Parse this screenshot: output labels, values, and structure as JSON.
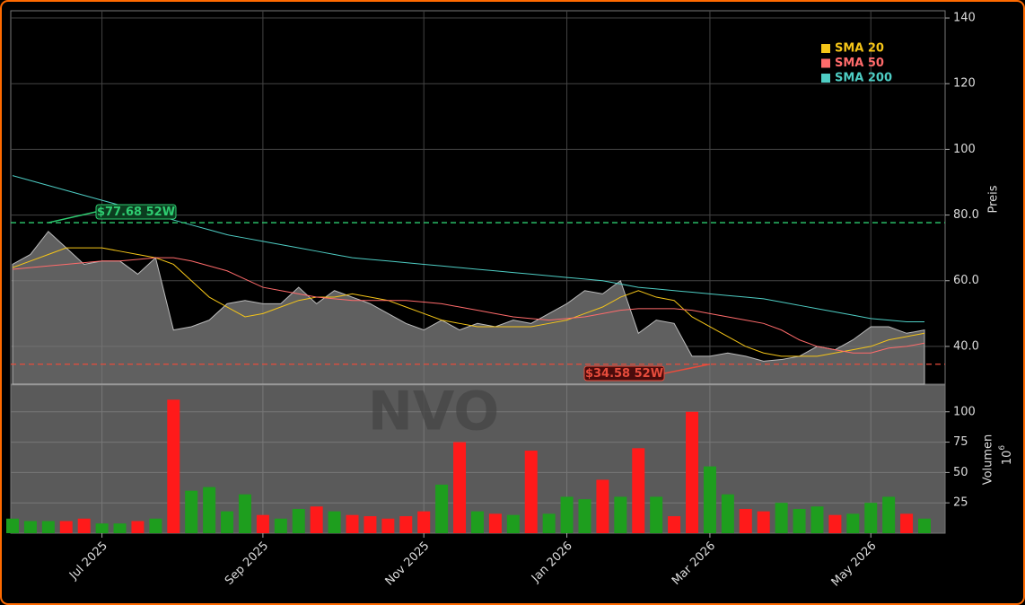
{
  "chart_data": [
    {
      "type": "area",
      "watermark": "NVO",
      "y_label": "Preis",
      "values": [
        65,
        68,
        75,
        70,
        65,
        66,
        66,
        62,
        67,
        45,
        46,
        48,
        53,
        54,
        53,
        53,
        58,
        53,
        57,
        55,
        53,
        50,
        47,
        45,
        48,
        45,
        47,
        46,
        48,
        47,
        50,
        53,
        57,
        56,
        60,
        44,
        48,
        47,
        37,
        37,
        38,
        37,
        35.5,
        36,
        37,
        40,
        39,
        42,
        46,
        46,
        44,
        45
      ],
      "color": "#808080",
      "series": [
        {
          "name": "SMA 20",
          "color": "#f5c518",
          "values": [
            64,
            66,
            68,
            70,
            70,
            70,
            69,
            68,
            67,
            65,
            60,
            55,
            52,
            49,
            50,
            52,
            54,
            55,
            55,
            56,
            55,
            54,
            52,
            50,
            48,
            47,
            46,
            46,
            46,
            46,
            47,
            48,
            50,
            52,
            55,
            57,
            55,
            54,
            49,
            46,
            43,
            40,
            38,
            37,
            37,
            37,
            38,
            39,
            40,
            42,
            43,
            44
          ]
        },
        {
          "name": "SMA 50",
          "color": "#ff6b6b",
          "values": [
            63.5,
            64,
            64.5,
            65,
            65.5,
            66,
            66,
            66.5,
            67,
            67,
            66,
            64.5,
            63,
            60.5,
            58,
            57,
            56,
            55,
            54.5,
            54,
            54,
            54,
            54,
            53.5,
            53,
            52,
            51,
            50,
            49,
            48.5,
            48,
            48.5,
            49,
            50,
            51,
            51.5,
            51.5,
            51.5,
            51,
            50,
            49,
            48,
            47,
            45,
            42,
            40,
            39,
            38,
            38,
            39.5,
            40,
            41
          ]
        },
        {
          "name": "SMA 200",
          "color": "#4ecdc4",
          "values": [
            92,
            90.5,
            89,
            87.5,
            86,
            84.5,
            83,
            81.5,
            80,
            78.5,
            77,
            75.5,
            74,
            73,
            72,
            71,
            70,
            69,
            68,
            67,
            66.5,
            66,
            65.5,
            65,
            64.5,
            64,
            63.5,
            63,
            62.5,
            62,
            61.5,
            61,
            60.5,
            60,
            59,
            58,
            57.5,
            57,
            56.5,
            56,
            55.5,
            55,
            54.5,
            53.5,
            52.5,
            51.5,
            50.5,
            49.5,
            48.5,
            48,
            47.5,
            47.5
          ]
        }
      ],
      "ylim": [
        28.5,
        142.2
      ],
      "yticks": [
        {
          "value": 40,
          "label": "40.0"
        },
        {
          "value": 60,
          "label": "60.0"
        },
        {
          "value": 80,
          "label": "80.0"
        },
        100,
        120,
        140
      ],
      "grid": true,
      "legend": "upper right",
      "annotations": [
        {
          "label": "$77.68 52W",
          "value": 77.68,
          "color": "#2ecc71",
          "point": 2
        },
        {
          "label": "$34.58 52W",
          "value": 34.58,
          "color": "#e74c3c",
          "point": 39
        }
      ]
    },
    {
      "type": "bar",
      "y_label": "Volumen",
      "y_unit": "10",
      "y_unit_exponent": "6",
      "categories": [
        null,
        null,
        null,
        null,
        null,
        "Jul 2025",
        null,
        null,
        null,
        null,
        null,
        null,
        null,
        null,
        "Sep 2025",
        null,
        null,
        null,
        null,
        null,
        null,
        null,
        null,
        "Nov 2025",
        null,
        null,
        null,
        null,
        null,
        null,
        null,
        "Jan 2026",
        null,
        null,
        null,
        null,
        null,
        null,
        null,
        "Mar 2026",
        null,
        null,
        null,
        null,
        null,
        null,
        null,
        null,
        "May 2026",
        null,
        null,
        null
      ],
      "values": [
        12,
        10,
        10,
        10,
        12,
        8,
        8,
        10,
        12,
        110,
        35,
        38,
        18,
        32,
        15,
        12,
        20,
        22,
        18,
        15,
        14,
        12,
        14,
        18,
        40,
        75,
        18,
        16,
        15,
        68,
        16,
        30,
        28,
        44,
        30,
        70,
        30,
        14,
        100,
        55,
        32,
        20,
        18,
        25,
        20,
        22,
        15,
        16,
        25,
        30,
        16,
        12
      ],
      "up_color": "#1e9e1e",
      "down_color": "#ff1a1a",
      "ylim": [
        0,
        122
      ],
      "yticks": [
        25,
        50,
        75,
        100
      ],
      "grid": true
    }
  ]
}
